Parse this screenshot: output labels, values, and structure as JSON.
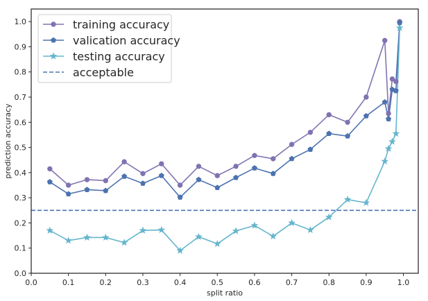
{
  "chart_data": {
    "type": "line",
    "title": "",
    "xlabel": "split ratio",
    "ylabel": "prediction accuracy",
    "xlim": [
      0.0,
      1.04
    ],
    "ylim": [
      0.0,
      1.05
    ],
    "xticks": [
      "0.0",
      "0.1",
      "0.2",
      "0.3",
      "0.4",
      "0.5",
      "0.6",
      "0.7",
      "0.8",
      "0.9",
      "1.0"
    ],
    "yticks": [
      "0.0",
      "0.1",
      "0.2",
      "0.3",
      "0.4",
      "0.5",
      "0.6",
      "0.7",
      "0.8",
      "0.9",
      "1.0"
    ],
    "x": [
      0.05,
      0.1,
      0.15,
      0.2,
      0.25,
      0.3,
      0.35,
      0.4,
      0.45,
      0.5,
      0.55,
      0.6,
      0.65,
      0.7,
      0.75,
      0.8,
      0.85,
      0.9,
      0.95,
      0.96,
      0.97,
      0.98,
      0.99
    ],
    "series": [
      {
        "name": "training accuracy",
        "color": "#8172b2",
        "marker": "circle",
        "values": [
          0.415,
          0.35,
          0.372,
          0.368,
          0.443,
          0.396,
          0.435,
          0.35,
          0.425,
          0.388,
          0.425,
          0.468,
          0.455,
          0.512,
          0.56,
          0.63,
          0.6,
          0.7,
          0.925,
          0.635,
          0.772,
          0.762,
          1.0
        ]
      },
      {
        "name": "valication accuracy",
        "color": "#4c72b0",
        "marker": "pentagon",
        "values": [
          0.363,
          0.315,
          0.332,
          0.328,
          0.385,
          0.357,
          0.388,
          0.302,
          0.372,
          0.34,
          0.38,
          0.418,
          0.396,
          0.455,
          0.492,
          0.555,
          0.545,
          0.625,
          0.68,
          0.613,
          0.73,
          0.725,
          0.995
        ]
      },
      {
        "name": "testing accuracy",
        "color": "#64b5cd",
        "marker": "star",
        "values": [
          0.17,
          0.13,
          0.142,
          0.142,
          0.122,
          0.17,
          0.172,
          0.09,
          0.145,
          0.117,
          0.168,
          0.19,
          0.147,
          0.2,
          0.172,
          0.223,
          0.293,
          0.28,
          0.445,
          0.495,
          0.523,
          0.555,
          0.975
        ]
      }
    ],
    "reference_line": {
      "name": "acceptable",
      "y": 0.25,
      "color": "#4c72b0",
      "style": "dashed"
    },
    "legend": {
      "position": "top-left",
      "entries": [
        "training accuracy",
        "valication accuracy",
        "testing accuracy",
        "acceptable"
      ]
    },
    "grid": false
  }
}
